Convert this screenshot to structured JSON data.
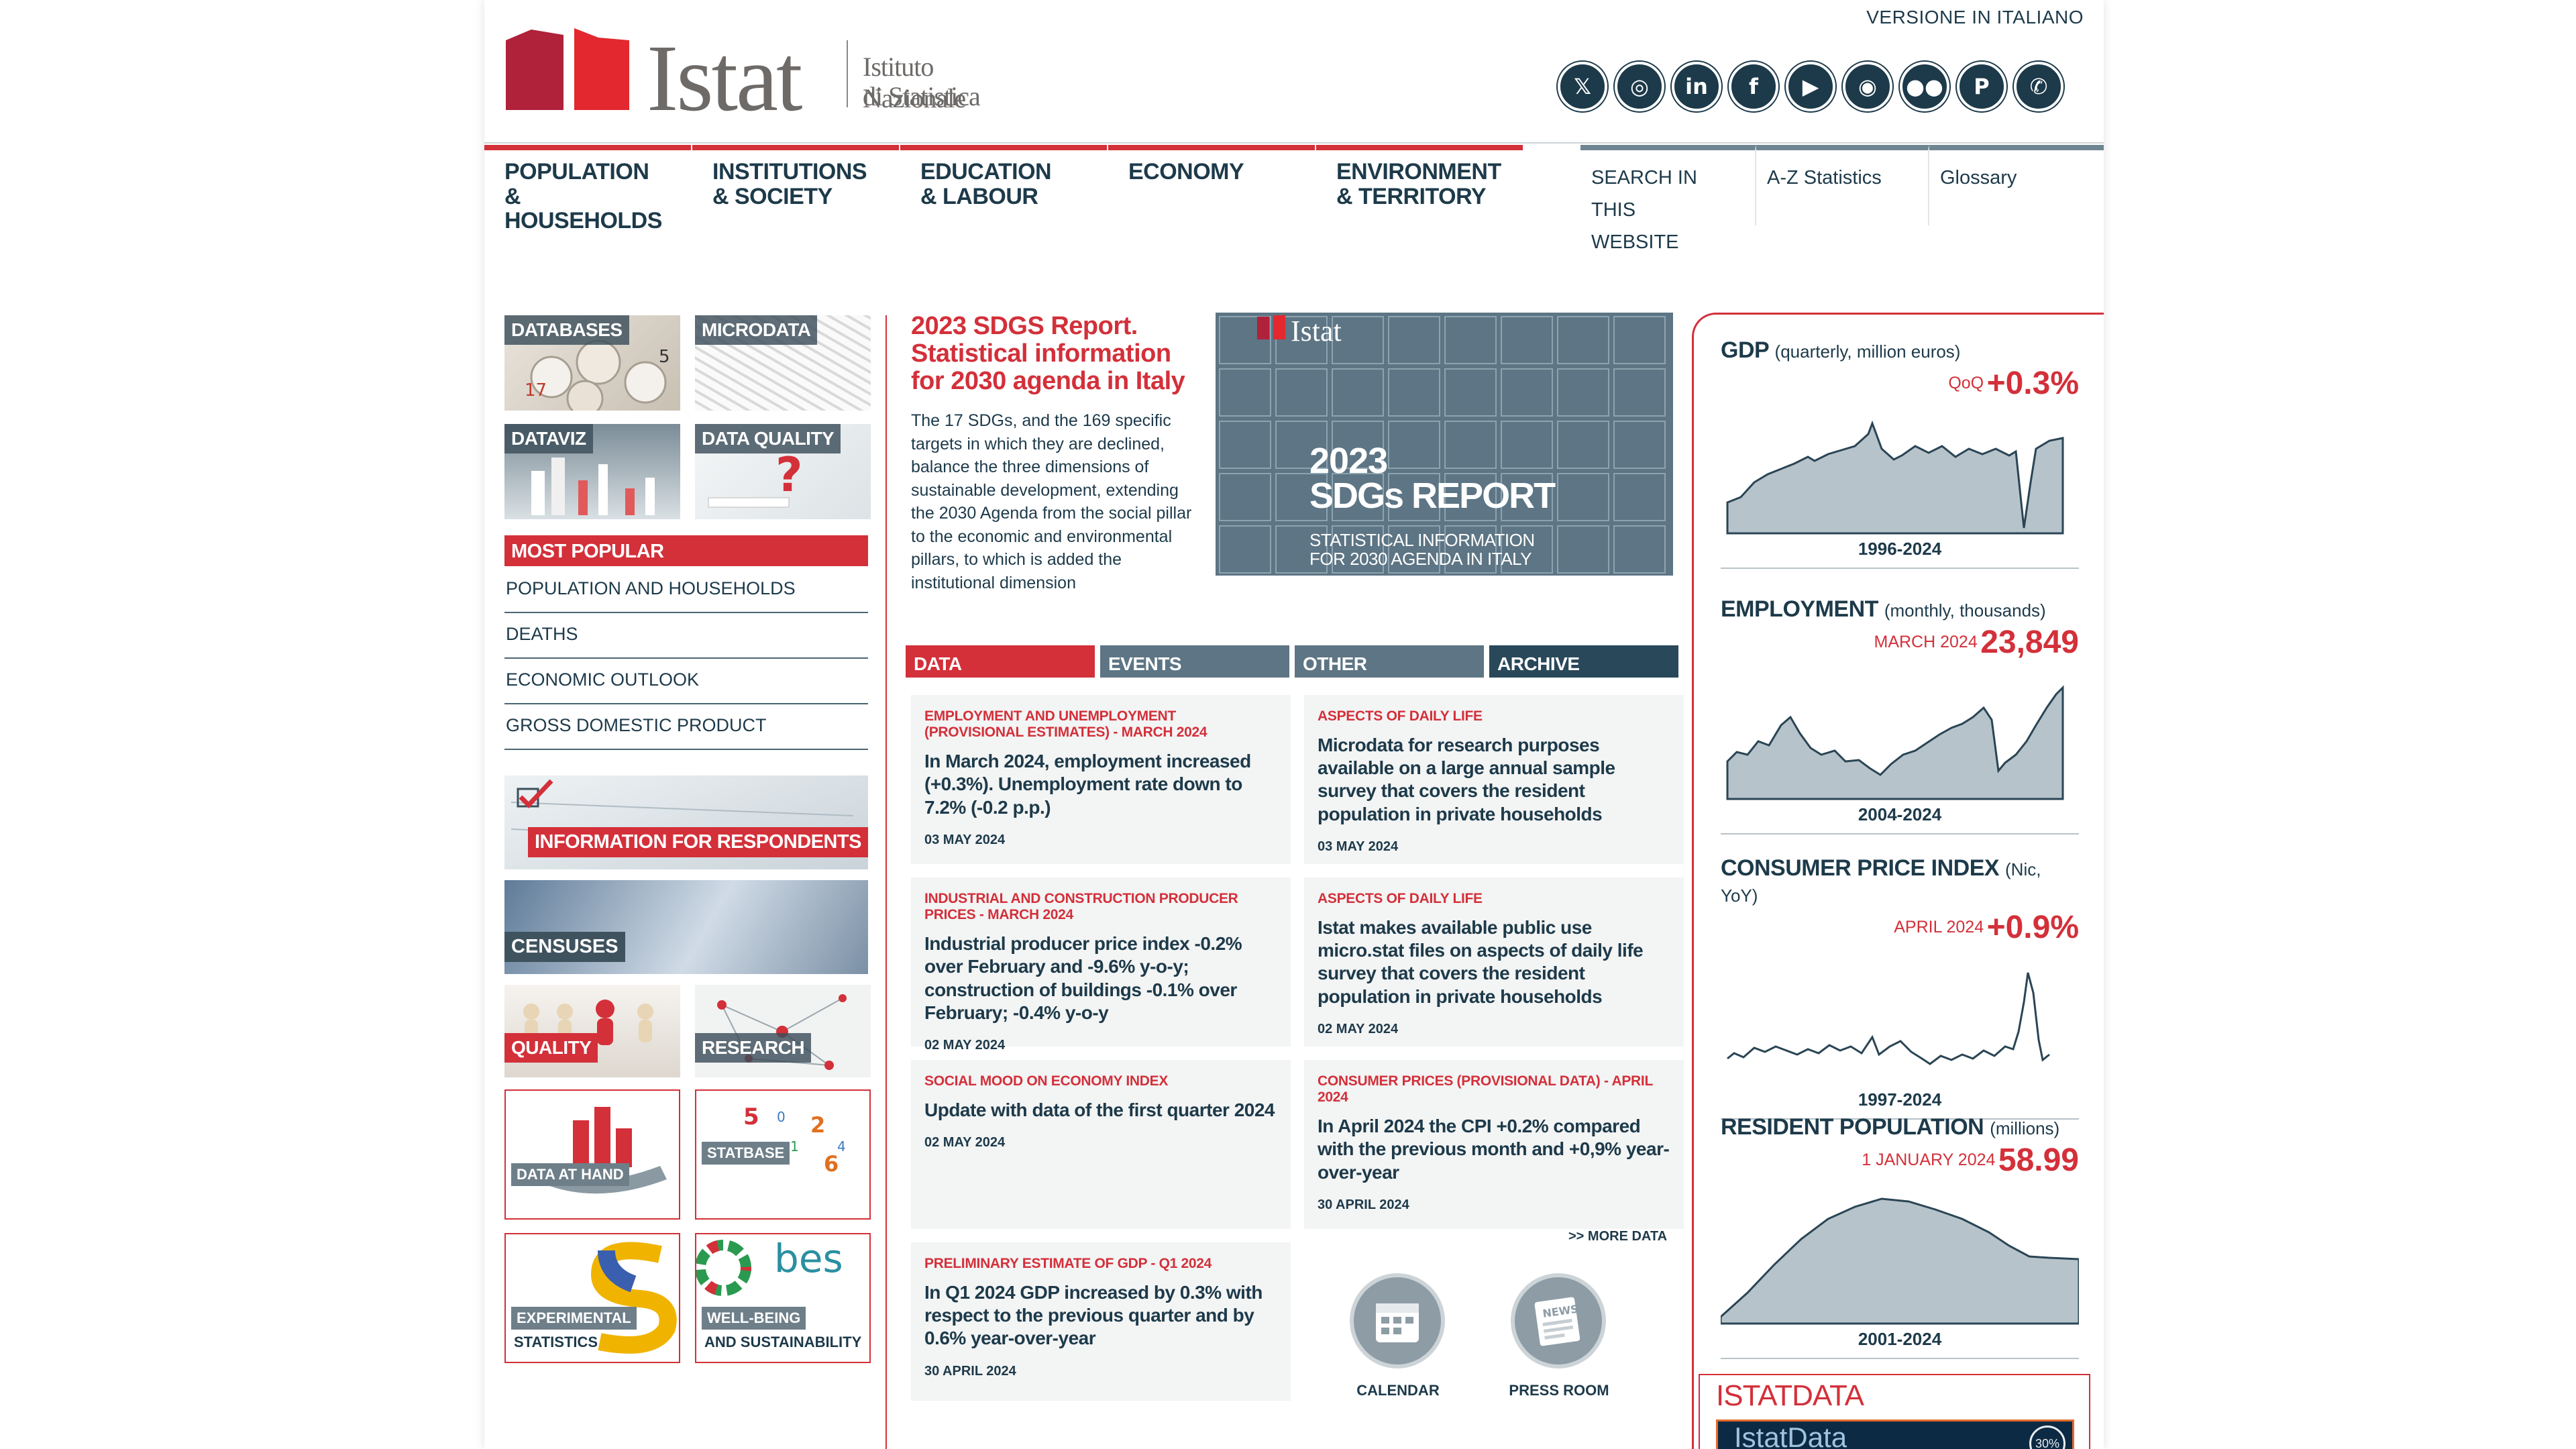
{
  "header": {
    "version_link": "VERSIONE IN ITALIANO",
    "logo_text": "Istat",
    "logo_sub1": "Istituto Nazionale",
    "logo_sub2": "di Statistica",
    "social": [
      {
        "name": "x-icon",
        "glyph": "𝕏"
      },
      {
        "name": "instagram-icon",
        "glyph": "◎"
      },
      {
        "name": "linkedin-icon",
        "glyph": "in"
      },
      {
        "name": "facebook-icon",
        "glyph": "f"
      },
      {
        "name": "youtube-icon",
        "glyph": "▶"
      },
      {
        "name": "slideshare-icon",
        "glyph": "◉"
      },
      {
        "name": "flickr-icon",
        "glyph": "●●"
      },
      {
        "name": "pinterest-icon",
        "glyph": "P"
      },
      {
        "name": "whatsapp-icon",
        "glyph": "✆"
      }
    ]
  },
  "nav": {
    "items": [
      {
        "line1": "POPULATION",
        "line2": "& HOUSEHOLDS"
      },
      {
        "line1": "INSTITUTIONS",
        "line2": "& SOCIETY"
      },
      {
        "line1": "EDUCATION",
        "line2": "& LABOUR"
      },
      {
        "line1": "ECONOMY",
        "line2": ""
      },
      {
        "line1": "ENVIRONMENT",
        "line2": "& TERRITORY"
      }
    ],
    "utility": {
      "search_line1": "SEARCH IN THIS",
      "search_line2": "WEBSITE",
      "az": "A-Z Statistics",
      "glossary": "Glossary"
    }
  },
  "left": {
    "tiles": {
      "databases": "DATABASES",
      "microdata": "MICRODATA",
      "dataviz": "DATAVIZ",
      "quality": "DATA QUALITY"
    },
    "most_popular": {
      "title": "MOST POPULAR",
      "items": [
        "POPULATION AND HOUSEHOLDS",
        "DEATHS",
        "ECONOMIC OUTLOOK",
        "GROSS DOMESTIC PRODUCT"
      ]
    },
    "respondents": "INFORMATION FOR RESPONDENTS",
    "censuses": "CENSUSES",
    "quality_small": "QUALITY",
    "research": "RESEARCH",
    "data_at_hand": "DATA AT HAND",
    "statbase": "STATBASE",
    "experimental1": "EXPERIMENTAL",
    "experimental2": "STATISTICS",
    "wellbeing1": "WELL-BEING",
    "wellbeing2": "AND SUSTAINABILITY",
    "bes_logo": "bes"
  },
  "center": {
    "sdg_title": "2023 SDGS Report. Statistical information for 2030 agenda in Italy",
    "sdg_text": "The 17 SDGs, and the 169 specific targets in which they are declined, balance the three dimensions of sustainable development, extending the 2030 Agenda from the social pillar to the economic and environmental pillars, to which is added the institutional dimension",
    "sdg_image": {
      "logo": "Istat",
      "title1": "2023",
      "title2": "SDGs REPORT",
      "sub1": "STATISTICAL INFORMATION",
      "sub2": "FOR 2030 AGENDA IN ITALY"
    },
    "tabs": [
      "DATA",
      "EVENTS",
      "OTHER",
      "ARCHIVE"
    ],
    "cards": [
      {
        "cat": "EMPLOYMENT AND UNEMPLOYMENT (PROVISIONAL ESTIMATES) - MARCH 2024",
        "title": "In March 2024, employment increased (+0.3%). Unemployment rate down to 7.2% (-0.2 p.p.)",
        "date": "03 MAY 2024"
      },
      {
        "cat": "ASPECTS OF DAILY LIFE",
        "title": "Microdata for research purposes available on a large annual sample survey that covers the resident population in private households",
        "date": "03 MAY 2024"
      },
      {
        "cat": "INDUSTRIAL AND CONSTRUCTION PRODUCER PRICES - MARCH 2024",
        "title": "Industrial producer price index -0.2% over February and -9.6% y-o-y; construction of buildings -0.1% over February; -0.4% y-o-y",
        "date": "02 MAY 2024"
      },
      {
        "cat": "ASPECTS OF DAILY LIFE",
        "title": "Istat makes available public use micro.stat files on aspects of daily life survey that covers the resident population in private households",
        "date": "02 MAY 2024"
      },
      {
        "cat": "SOCIAL MOOD ON ECONOMY INDEX",
        "title": "Update with data of the first quarter 2024",
        "date": "02 MAY 2024"
      },
      {
        "cat": "CONSUMER PRICES (PROVISIONAL DATA) - APRIL 2024",
        "title": "In April 2024 the CPI +0.2% compared with the previous month and +0,9% year-over-year",
        "date": "30 APRIL 2024"
      },
      {
        "cat": "PRELIMINARY ESTIMATE OF GDP - Q1 2024",
        "title": "In Q1 2024 GDP increased by 0.3% with respect to the previous quarter and by 0.6% year-over-year",
        "date": "30 APRIL 2024"
      }
    ],
    "more_data": ">> MORE DATA",
    "calendar": "CALENDAR",
    "press_room": "PRESS ROOM",
    "news_glyph": "NEWS"
  },
  "right": {
    "indicators": [
      {
        "title": "GDP",
        "unit": "(quarterly, million euros)",
        "period": "QoQ",
        "value": "+0.3%",
        "range": "1996-2024"
      },
      {
        "title": "EMPLOYMENT",
        "unit": "(monthly, thousands)",
        "period": "MARCH 2024",
        "value": "23,849",
        "range": "2004-2024"
      },
      {
        "title": "CONSUMER PRICE INDEX",
        "unit": "(Nic, YoY)",
        "period": "APRIL 2024",
        "value": "+0.9%",
        "range": "1997-2024"
      },
      {
        "title": "RESIDENT POPULATION",
        "unit": "(millions)",
        "period": "1 JANUARY 2024",
        "value": "58.99",
        "range": "2001-2024"
      }
    ],
    "istatdata": {
      "title": "ISTATDATA",
      "banner": "IstatData",
      "badge": "30%"
    }
  },
  "colors": {
    "accent": "#d3303a",
    "navy": "#1d3a4a",
    "slate": "#5d7584",
    "chart_fill": "#b7c3ca"
  }
}
